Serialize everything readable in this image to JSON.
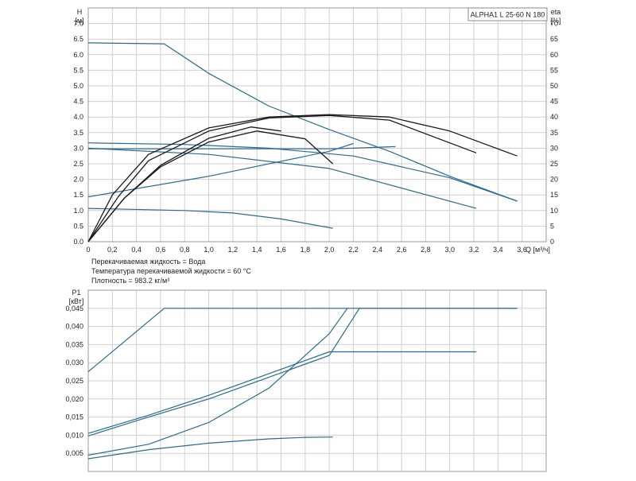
{
  "model_label": "ALPHA1 L 25-60 N 180",
  "info_lines": [
    "Перекачиваемая жидкость = Вода",
    "Температура перекачиваемой жидкости = 60 °C",
    "Плотность = 983.2 кг/м³"
  ],
  "colors": {
    "grid": "#cfcfcf",
    "frame": "#9a9a9a",
    "blue": "#2a6a8e",
    "black": "#1a1a1a"
  },
  "chart_data": [
    {
      "type": "line",
      "title": "",
      "xlabel": "Q [м³/ч]",
      "ylabel": "H [м]",
      "y2label": "eta [%]",
      "xlim": [
        0,
        3.8
      ],
      "ylim": [
        0,
        7.5
      ],
      "y2lim": [
        0,
        75
      ],
      "grid": true,
      "x_ticks": [
        "0",
        "0,2",
        "0,4",
        "0,6",
        "0,8",
        "1,0",
        "1,2",
        "1,4",
        "1,6",
        "1,8",
        "2,0",
        "2,2",
        "2,4",
        "2,6",
        "2,8",
        "3,0",
        "3,2",
        "3,4",
        "3,6"
      ],
      "y_ticks": [
        "0.0",
        "0.5",
        "1.0",
        "1.5",
        "2.0",
        "2.5",
        "3.0",
        "3.5",
        "4.0",
        "4.5",
        "5.0",
        "5.5",
        "6.0",
        "6.5",
        "7.0"
      ],
      "y2_ticks": [
        "0",
        "5",
        "10",
        "15",
        "20",
        "25",
        "30",
        "35",
        "40",
        "45",
        "50",
        "55",
        "60",
        "65",
        "70"
      ],
      "series": [
        {
          "color": "blue",
          "x": [
            0,
            0.63,
            1.0,
            1.5,
            2.0,
            2.5,
            3.0,
            3.56
          ],
          "y": [
            6.38,
            6.35,
            5.4,
            4.35,
            3.6,
            2.9,
            2.1,
            1.3
          ]
        },
        {
          "color": "blue",
          "x": [
            0,
            0.8,
            1.5,
            2.2,
            3.0,
            3.56
          ],
          "y": [
            3.17,
            3.12,
            3.0,
            2.75,
            2.05,
            1.3
          ]
        },
        {
          "color": "blue",
          "x": [
            0,
            1.0,
            2.0,
            3.22
          ],
          "y": [
            3.0,
            2.8,
            2.35,
            1.07
          ]
        },
        {
          "color": "blue",
          "x": [
            0,
            1.0,
            2.0,
            2.2
          ],
          "y": [
            1.44,
            2.1,
            2.9,
            3.15
          ]
        },
        {
          "color": "blue",
          "x": [
            0,
            2.0,
            2.2,
            2.55
          ],
          "y": [
            2.98,
            2.98,
            3.0,
            3.05
          ]
        },
        {
          "color": "blue",
          "x": [
            0,
            0.8,
            1.2,
            1.6,
            2.03
          ],
          "y": [
            1.07,
            1.0,
            0.92,
            0.73,
            0.43
          ]
        },
        {
          "color": "black",
          "x": [
            0,
            0.2,
            0.5,
            1.0,
            1.5,
            2.0,
            2.5,
            3.0,
            3.56
          ],
          "y": [
            0,
            1.5,
            2.8,
            3.65,
            4.0,
            4.08,
            4.0,
            3.55,
            2.75
          ]
        },
        {
          "color": "black",
          "x": [
            0,
            0.25,
            0.5,
            1.0,
            1.5,
            2.0,
            2.5,
            3.22
          ],
          "y": [
            0,
            1.45,
            2.6,
            3.55,
            3.97,
            4.05,
            3.9,
            2.85
          ]
        },
        {
          "color": "black",
          "x": [
            0,
            0.3,
            0.6,
            1.0,
            1.4,
            1.8,
            2.03
          ],
          "y": [
            0,
            1.4,
            2.4,
            3.2,
            3.55,
            3.3,
            2.5
          ]
        },
        {
          "color": "black",
          "x": [
            0,
            0.3,
            0.6,
            1.0,
            1.35,
            1.6
          ],
          "y": [
            0,
            1.4,
            2.45,
            3.32,
            3.68,
            3.55
          ]
        }
      ]
    },
    {
      "type": "line",
      "title": "",
      "xlabel": "",
      "ylabel": "P1 [кВт]",
      "xlim": [
        0,
        3.8
      ],
      "ylim": [
        0,
        0.05
      ],
      "grid": true,
      "y_ticks": [
        "0,005",
        "0,010",
        "0,015",
        "0,020",
        "0,025",
        "0,030",
        "0,035",
        "0,040",
        "0,045"
      ],
      "series": [
        {
          "color": "blue",
          "x": [
            0,
            0.63,
            3.56
          ],
          "y": [
            0.0275,
            0.045,
            0.045
          ]
        },
        {
          "color": "blue",
          "x": [
            0,
            0.5,
            1.0,
            1.5,
            2.0,
            2.25,
            3.22
          ],
          "y": [
            0.0105,
            0.0155,
            0.021,
            0.027,
            0.033,
            0.033,
            0.033
          ]
        },
        {
          "color": "blue",
          "x": [
            0,
            0.5,
            1.0,
            1.5,
            2.0,
            2.25,
            3.56
          ],
          "y": [
            0.0098,
            0.015,
            0.02,
            0.026,
            0.032,
            0.045,
            0.045
          ]
        },
        {
          "color": "blue",
          "x": [
            0,
            0.5,
            1.0,
            1.5,
            2.0,
            2.15
          ],
          "y": [
            0.0045,
            0.0075,
            0.0135,
            0.023,
            0.038,
            0.045
          ]
        },
        {
          "color": "blue",
          "x": [
            0,
            0.5,
            1.0,
            1.5,
            1.8,
            2.03
          ],
          "y": [
            0.0035,
            0.006,
            0.0078,
            0.009,
            0.0094,
            0.0095
          ]
        }
      ]
    }
  ]
}
